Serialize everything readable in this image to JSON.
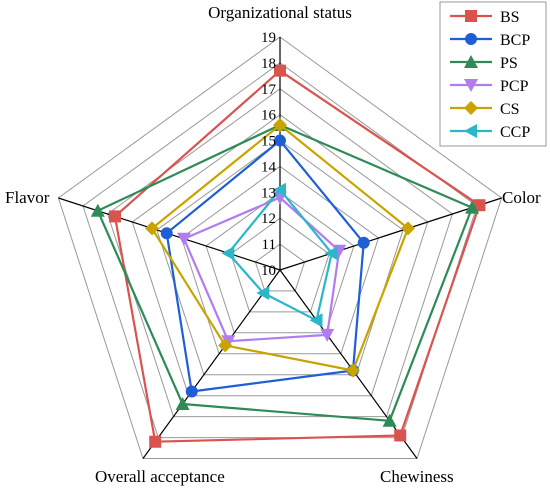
{
  "chart_data": {
    "type": "radar",
    "axes": [
      "Organizational status",
      "Color",
      "Chewiness",
      "Overall acceptance",
      "Flavor"
    ],
    "rlim": [
      10,
      19
    ],
    "ticks": [
      10,
      11,
      12,
      13,
      14,
      15,
      16,
      17,
      18,
      19
    ],
    "grid": true,
    "legend_position": "top-right",
    "series": [
      {
        "name": "BS",
        "color": "#d9534f",
        "marker": "square",
        "values": [
          17.7,
          18.1,
          17.9,
          18.2,
          16.7
        ]
      },
      {
        "name": "BCP",
        "color": "#1f5fd6",
        "marker": "circle",
        "values": [
          15.0,
          13.4,
          14.8,
          15.8,
          14.6
        ]
      },
      {
        "name": "PS",
        "color": "#2e8b57",
        "marker": "triangle-up",
        "values": [
          15.6,
          17.8,
          17.2,
          16.4,
          17.4
        ]
      },
      {
        "name": "PCP",
        "color": "#b07cf0",
        "marker": "triangle-down",
        "values": [
          12.8,
          12.4,
          13.1,
          13.4,
          13.9
        ]
      },
      {
        "name": "CS",
        "color": "#c9a400",
        "marker": "diamond",
        "values": [
          15.6,
          15.2,
          14.8,
          13.6,
          15.2
        ]
      },
      {
        "name": "CCP",
        "color": "#2ab7c9",
        "marker": "triangle-left",
        "values": [
          13.1,
          12.1,
          12.4,
          11.1,
          12.1
        ]
      }
    ]
  }
}
